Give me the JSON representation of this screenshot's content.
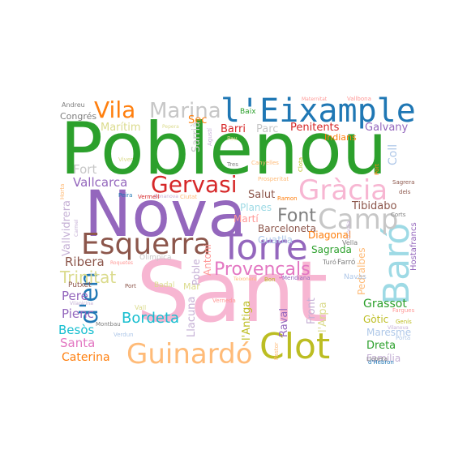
{
  "cloud": {
    "words": [
      {
        "id": "poblenou",
        "text": "Poblenou",
        "color": "#2ca02c"
      },
      {
        "id": "sant",
        "text": "Sant",
        "color": "#f7b6d2"
      },
      {
        "id": "nova",
        "text": "Nova",
        "color": "#9467bd"
      },
      {
        "id": "torre",
        "text": "Torre",
        "color": "#9467bd"
      },
      {
        "id": "eixample",
        "text": "l'Eixample",
        "color": "#1f77b4"
      },
      {
        "id": "baro",
        "text": "Baró",
        "color": "#9edae5"
      },
      {
        "id": "clot",
        "text": "Clot",
        "color": "#bcbd22"
      },
      {
        "id": "guinardo",
        "text": "Guinardó",
        "color": "#ffbb78"
      },
      {
        "id": "esquerra",
        "text": "Esquerra",
        "color": "#8c564b"
      },
      {
        "id": "gracia",
        "text": "Gràcia",
        "color": "#f7b6d2"
      },
      {
        "id": "camp",
        "text": "Camp",
        "color": "#c7c7c7"
      },
      {
        "id": "gervasi",
        "text": "Gervasi",
        "color": "#d62728"
      },
      {
        "id": "vila",
        "text": "Vila",
        "color": "#ff7f0e"
      },
      {
        "id": "marina",
        "text": "Marina",
        "color": "#c7c7c7"
      },
      {
        "id": "den",
        "text": "d'en",
        "color": "#1f77b4"
      },
      {
        "id": "font",
        "text": "Font",
        "color": "#7f7f7f"
      },
      {
        "id": "provencals",
        "text": "Provençals",
        "color": "#e377c2"
      },
      {
        "id": "trinitat",
        "text": "Trinitat",
        "color": "#dbdb8d"
      },
      {
        "id": "bordeta",
        "text": "Bordeta",
        "color": "#17becf"
      },
      {
        "id": "caterina",
        "text": "Caterina",
        "color": "#ff7f0e"
      },
      {
        "id": "santa",
        "text": "Santa",
        "color": "#e377c2"
      },
      {
        "id": "besos",
        "text": "Besòs",
        "color": "#17becf"
      },
      {
        "id": "pienc",
        "text": "Pienc",
        "color": "#9467bd"
      },
      {
        "id": "pere",
        "text": "Pere",
        "color": "#9467bd"
      },
      {
        "id": "ribera",
        "text": "Ribera",
        "color": "#8c564b"
      },
      {
        "id": "vallcarca",
        "text": "Vallcarca",
        "color": "#9467bd"
      },
      {
        "id": "vallvidrera",
        "text": "Vallvidrera",
        "color": "#c5b0d5"
      },
      {
        "id": "fort",
        "text": "Fort",
        "color": "#c7c7c7"
      },
      {
        "id": "maritim",
        "text": "Marítim",
        "color": "#dbdb8d"
      },
      {
        "id": "congres",
        "text": "Congrés",
        "color": "#7f7f7f"
      },
      {
        "id": "andreu",
        "text": "Andreu",
        "color": "#7f7f7f"
      },
      {
        "id": "sec",
        "text": "Sec",
        "color": "#ff7f0e"
      },
      {
        "id": "sarria",
        "text": "Sarrià",
        "color": "#c7c7c7"
      },
      {
        "id": "barri",
        "text": "Barri",
        "color": "#d62728"
      },
      {
        "id": "parc",
        "text": "Parc",
        "color": "#c7c7c7"
      },
      {
        "id": "penitents",
        "text": "Penitents",
        "color": "#d62728"
      },
      {
        "id": "galvany",
        "text": "Galvany",
        "color": "#9467bd"
      },
      {
        "id": "baix",
        "text": "Baix",
        "color": "#2ca02c"
      },
      {
        "id": "coll",
        "text": "Coll",
        "color": "#aec7e8"
      },
      {
        "id": "tibidabo",
        "text": "Tibidabo",
        "color": "#8c564b"
      },
      {
        "id": "salut",
        "text": "Salut",
        "color": "#8c564b"
      },
      {
        "id": "planes",
        "text": "Planes",
        "color": "#9edae5"
      },
      {
        "id": "marti",
        "text": "Martí",
        "color": "#ff9896"
      },
      {
        "id": "guatlla",
        "text": "Guatlla",
        "color": "#aec7e8"
      },
      {
        "id": "barceloneta",
        "text": "Barceloneta",
        "color": "#8c564b"
      },
      {
        "id": "diagonal",
        "text": "Diagonal",
        "color": "#ff7f0e"
      },
      {
        "id": "sagrada",
        "text": "Sagrada",
        "color": "#2ca02c"
      },
      {
        "id": "indians",
        "text": "Indians",
        "color": "#ff7f0e"
      },
      {
        "id": "pedralbes",
        "text": "Pedralbes",
        "color": "#ffbb78"
      },
      {
        "id": "hostafrancs",
        "text": "Hostafrancs",
        "color": "#9467bd"
      },
      {
        "id": "grassot",
        "text": "Grassot",
        "color": "#2ca02c"
      },
      {
        "id": "gotic",
        "text": "Gòtic",
        "color": "#bcbd22"
      },
      {
        "id": "maresme",
        "text": "Maresme",
        "color": "#aec7e8"
      },
      {
        "id": "dreta",
        "text": "Dreta",
        "color": "#2ca02c"
      },
      {
        "id": "familia",
        "text": "Família",
        "color": "#c5b0d5"
      },
      {
        "id": "raval",
        "text": "Raval",
        "color": "#9467bd"
      },
      {
        "id": "larpa",
        "text": "l'Arpa",
        "color": "#dbdb8d"
      },
      {
        "id": "front",
        "text": "Front",
        "color": "#c5b0d5"
      },
      {
        "id": "lantiga",
        "text": "l'Antiga",
        "color": "#bcbd22"
      },
      {
        "id": "llacuna",
        "text": "Llacuna",
        "color": "#c5b0d5"
      },
      {
        "id": "poble",
        "text": "Poble",
        "color": "#c5b0d5"
      },
      {
        "id": "antoni",
        "text": "Antoni",
        "color": "#ff9896"
      },
      {
        "id": "mar",
        "text": "Mar",
        "color": "#dbdb8d"
      },
      {
        "id": "putxet",
        "text": "Putxet",
        "color": "#8c564b"
      },
      {
        "id": "olimpica",
        "text": "Olímpica",
        "color": "#c7c7c7"
      },
      {
        "id": "navas",
        "text": "Navas",
        "color": "#aec7e8"
      },
      {
        "id": "farro",
        "text": "Farró",
        "color": "#7f7f7f"
      },
      {
        "id": "turo",
        "text": "Turó",
        "color": "#7f7f7f"
      },
      {
        "id": "vella",
        "text": "Vella",
        "color": "#7f7f7f"
      },
      {
        "id": "badal",
        "text": "Badal",
        "color": "#dbdb8d"
      },
      {
        "id": "vall",
        "text": "Vall",
        "color": "#dbdb8d"
      },
      {
        "id": "verdun",
        "text": "Verdun",
        "color": "#aec7e8"
      },
      {
        "id": "montbau",
        "text": "Montbau",
        "color": "#7f7f7f"
      },
      {
        "id": "vilapicina",
        "text": "Vilapicina",
        "color": "#c5b0d5"
      },
      {
        "id": "pastor",
        "text": "Pastor",
        "color": "#ffbb78"
      },
      {
        "id": "vernede",
        "text": "Verneda",
        "color": "#ff9896"
      },
      {
        "id": "teixonera",
        "text": "Teixonera",
        "color": "#ffbb78"
      },
      {
        "id": "meridiana",
        "text": "Meridiana",
        "color": "#9467bd"
      },
      {
        "id": "bon",
        "text": "Bon",
        "color": "#bcbd22"
      },
      {
        "id": "farques",
        "text": "Fargues",
        "color": "#ff9896"
      },
      {
        "id": "genis",
        "text": "Genís",
        "color": "#bcbd22"
      },
      {
        "id": "porta",
        "text": "Porta",
        "color": "#aec7e8"
      },
      {
        "id": "llobeta",
        "text": "Llobeta",
        "color": "#7f7f7f"
      },
      {
        "id": "hebron",
        "text": "d'Hebron",
        "color": "#1f77b4"
      },
      {
        "id": "maternitat",
        "text": "Maternitat",
        "color": "#ff9896"
      },
      {
        "id": "vallbona",
        "text": "Vallbona",
        "color": "#ff9896"
      },
      {
        "id": "pepera",
        "text": "Pepera",
        "color": "#dbdb8d"
      },
      {
        "id": "pau",
        "text": "Pau",
        "color": "#dbdb8d"
      },
      {
        "id": "agusti",
        "text": "Agustí",
        "color": "#c5b0d5"
      },
      {
        "id": "viver",
        "text": "Viver",
        "color": "#dbdb8d"
      },
      {
        "id": "tres",
        "text": "Tres",
        "color": "#7f7f7f"
      },
      {
        "id": "canyelles",
        "text": "Canyelles",
        "color": "#ffbb78"
      },
      {
        "id": "prosperitat",
        "text": "Prosperitat",
        "color": "#ffbb78"
      },
      {
        "id": "ciutat",
        "text": "Ciutat",
        "color": "#ffbb78"
      },
      {
        "id": "ramon",
        "text": "Ramon",
        "color": "#ff7f0e"
      },
      {
        "id": "bonanova",
        "text": "Bonanova",
        "color": "#c5b0d5"
      },
      {
        "id": "vermell",
        "text": "Vermell",
        "color": "#d62728"
      },
      {
        "id": "peira",
        "text": "Peira",
        "color": "#1f77b4"
      },
      {
        "id": "port",
        "text": "Port",
        "color": "#8c564b"
      },
      {
        "id": "port2",
        "text": "Port",
        "color": "#ff7f0e"
      },
      {
        "id": "horta",
        "text": "Horta",
        "color": "#ffbb78"
      },
      {
        "id": "clota",
        "text": "Clota",
        "color": "#bcbd22"
      },
      {
        "id": "sagrera",
        "text": "Sagrera",
        "color": "#8c564b"
      },
      {
        "id": "dels",
        "text": "dels",
        "color": "#8c564b"
      },
      {
        "id": "corts",
        "text": "Corts",
        "color": "#7f7f7f"
      },
      {
        "id": "roquetes",
        "text": "Roquetes",
        "color": "#ff9896"
      },
      {
        "id": "carmel",
        "text": "Carmel",
        "color": "#c5b0d5"
      },
      {
        "id": "guardia",
        "text": "Guàrdia",
        "color": "#c5b0d5"
      },
      {
        "id": "vilanova",
        "text": "Vilanova",
        "color": "#c5b0d5"
      }
    ]
  }
}
